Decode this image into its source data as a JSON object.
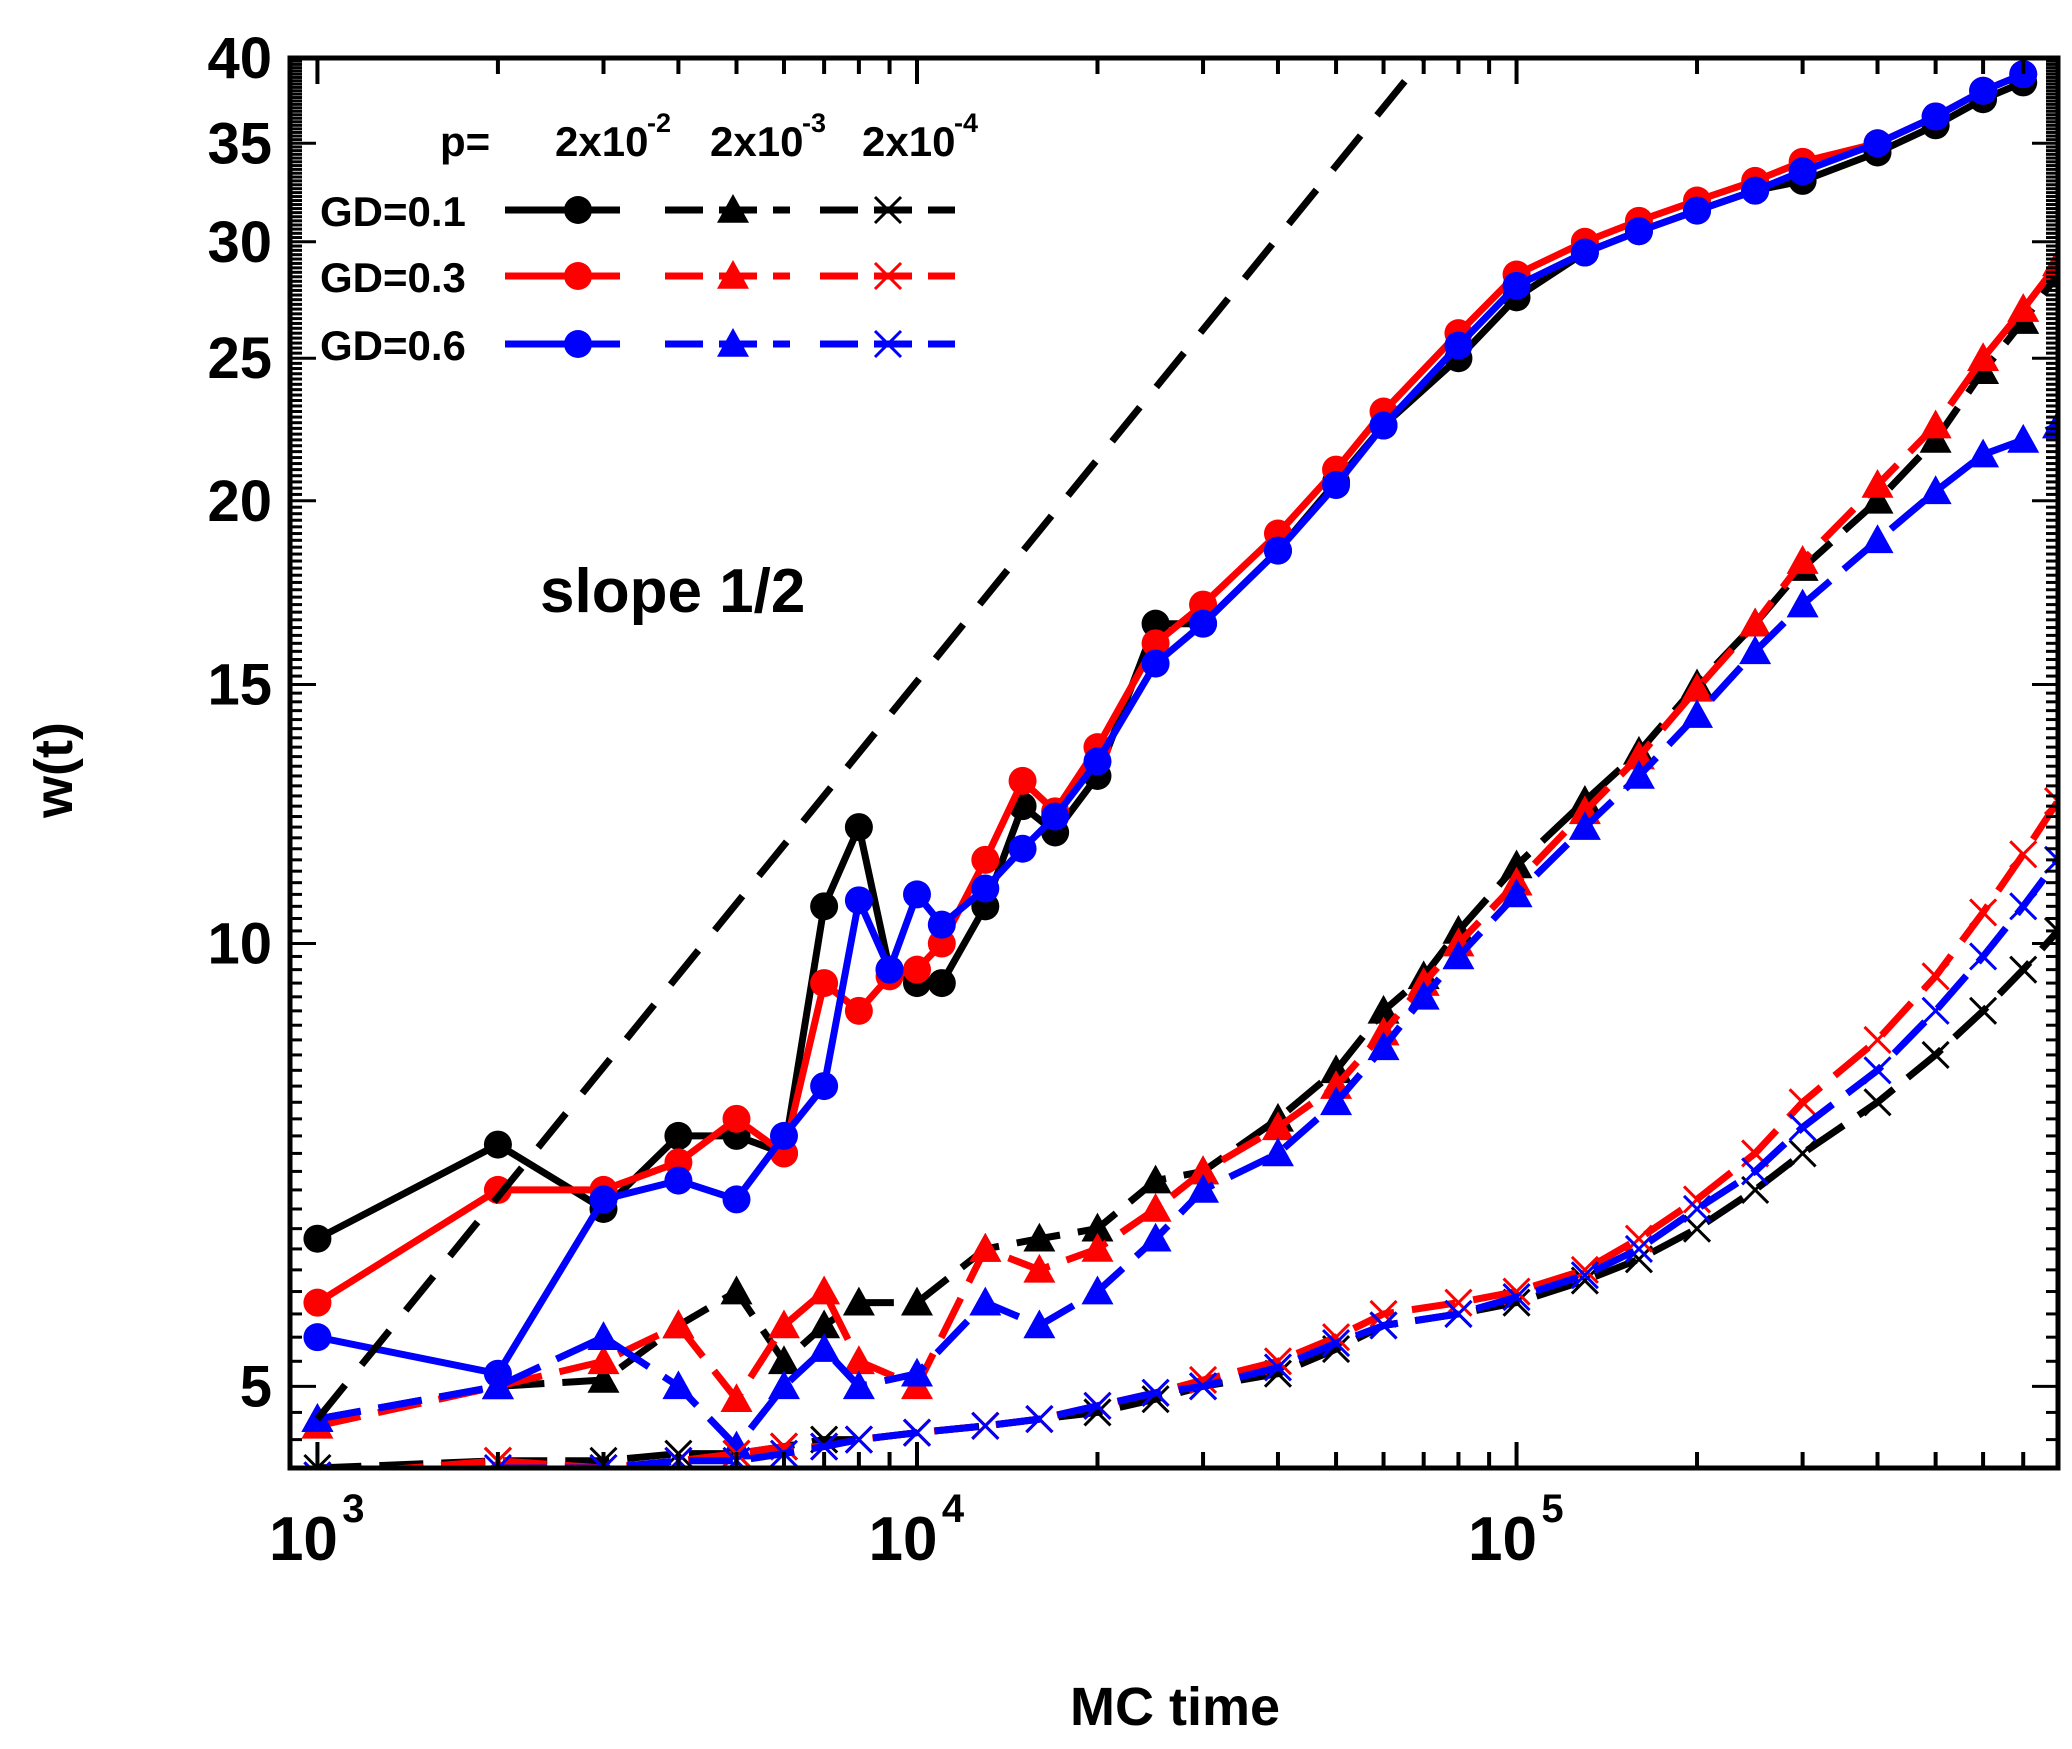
{
  "chart_data": {
    "type": "line",
    "xlabel": "MC time",
    "ylabel": "w(t)",
    "x_scale": "log",
    "y_scale": "log",
    "xlim": [
      900,
      800000
    ],
    "ylim": [
      4.4,
      40
    ],
    "x_ticks": [
      {
        "value": 1000,
        "base": "10",
        "exp": "3"
      },
      {
        "value": 10000,
        "base": "10",
        "exp": "4"
      },
      {
        "value": 100000,
        "base": "10",
        "exp": "5"
      }
    ],
    "y_ticks": [
      {
        "value": 5,
        "label": "5"
      },
      {
        "value": 10,
        "label": "10"
      },
      {
        "value": 15,
        "label": "15"
      },
      {
        "value": 20,
        "label": "20"
      },
      {
        "value": 25,
        "label": "25"
      },
      {
        "value": 30,
        "label": "30"
      },
      {
        "value": 35,
        "label": "35"
      },
      {
        "value": 40,
        "label": "40"
      }
    ],
    "legend": {
      "position": "top-left",
      "p_label": "p=",
      "p_values": [
        {
          "base": "2x10",
          "exp": "-2"
        },
        {
          "base": "2x10",
          "exp": "-3"
        },
        {
          "base": "2x10",
          "exp": "-4"
        }
      ],
      "rows": [
        {
          "label": "GD=0.1",
          "color": "#000000"
        },
        {
          "label": "GD=0.3",
          "color": "#ff0000"
        },
        {
          "label": "GD=0.6",
          "color": "#0000ff"
        }
      ]
    },
    "annotation": {
      "text": "slope 1/2",
      "slope": 0.5,
      "line_points": [
        [
          1000,
          4.75
        ],
        [
          70000,
          40
        ]
      ]
    },
    "series": [
      {
        "group": "p=2x10^-2",
        "marker": "circle",
        "color": "#000000",
        "dash": "solid",
        "x": [
          1000,
          2000,
          3000,
          4000,
          5000,
          6000,
          7000,
          8000,
          9000,
          10000,
          11000,
          13000,
          15000,
          17000,
          20000,
          25000,
          30000,
          40000,
          50000,
          60000,
          80000,
          100000,
          130000,
          160000,
          200000,
          250000,
          300000,
          400000,
          500000,
          600000,
          700000
        ],
        "y": [
          6.3,
          7.3,
          6.6,
          7.4,
          7.4,
          7.2,
          10.6,
          12.0,
          9.6,
          9.4,
          9.4,
          10.6,
          12.4,
          11.9,
          13.0,
          16.5,
          16.5,
          18.5,
          20.6,
          22.5,
          25.0,
          27.5,
          29.5,
          30.5,
          31.5,
          32.5,
          33.0,
          34.5,
          36.0,
          37.5,
          38.5
        ]
      },
      {
        "group": "p=2x10^-2",
        "marker": "circle",
        "color": "#ff0000",
        "dash": "solid",
        "x": [
          1000,
          2000,
          3000,
          4000,
          5000,
          6000,
          7000,
          8000,
          9000,
          10000,
          11000,
          13000,
          15000,
          17000,
          20000,
          25000,
          30000,
          40000,
          50000,
          60000,
          80000,
          100000,
          130000,
          160000,
          200000,
          250000,
          300000,
          400000,
          500000,
          600000,
          700000
        ],
        "y": [
          5.7,
          6.8,
          6.8,
          7.1,
          7.6,
          7.2,
          9.4,
          9.0,
          9.5,
          9.6,
          10.0,
          11.4,
          12.9,
          12.3,
          13.6,
          16.0,
          17.0,
          19.0,
          21.0,
          23.0,
          26.0,
          28.5,
          30.0,
          31.0,
          32.0,
          33.0,
          34.0,
          35.0,
          36.5,
          38.0,
          39.0
        ]
      },
      {
        "group": "p=2x10^-2",
        "marker": "circle",
        "color": "#0000ff",
        "dash": "solid",
        "x": [
          1000,
          2000,
          3000,
          4000,
          5000,
          6000,
          7000,
          8000,
          9000,
          10000,
          11000,
          13000,
          15000,
          17000,
          20000,
          25000,
          30000,
          40000,
          50000,
          60000,
          80000,
          100000,
          130000,
          160000,
          200000,
          250000,
          300000,
          400000,
          500000,
          600000,
          700000
        ],
        "y": [
          5.4,
          5.1,
          6.7,
          6.9,
          6.7,
          7.4,
          8.0,
          10.7,
          9.6,
          10.8,
          10.3,
          10.9,
          11.6,
          12.2,
          13.3,
          15.5,
          16.5,
          18.5,
          20.5,
          22.5,
          25.5,
          28.0,
          29.5,
          30.5,
          31.5,
          32.5,
          33.5,
          35.0,
          36.5,
          38.0,
          39.0
        ]
      },
      {
        "group": "p=2x10^-3",
        "marker": "triangle",
        "color": "#000000",
        "dash": "dashed",
        "x": [
          1000,
          2000,
          3000,
          4000,
          5000,
          6000,
          7000,
          8000,
          10000,
          13000,
          16000,
          20000,
          25000,
          30000,
          40000,
          50000,
          60000,
          70000,
          80000,
          100000,
          130000,
          160000,
          200000,
          250000,
          300000,
          400000,
          500000,
          600000,
          700000,
          800000
        ],
        "y": [
          4.75,
          5.0,
          5.05,
          5.5,
          5.8,
          5.2,
          5.5,
          5.7,
          5.7,
          6.2,
          6.3,
          6.4,
          6.9,
          7.0,
          7.6,
          8.2,
          9.0,
          9.5,
          10.2,
          11.3,
          12.5,
          13.5,
          15.0,
          16.5,
          18.0,
          20.0,
          22.0,
          24.5,
          26.5,
          28.5
        ]
      },
      {
        "group": "p=2x10^-3",
        "marker": "triangle",
        "color": "#ff0000",
        "dash": "dashed",
        "x": [
          1000,
          2000,
          3000,
          4000,
          5000,
          6000,
          7000,
          8000,
          10000,
          13000,
          16000,
          20000,
          25000,
          30000,
          40000,
          50000,
          60000,
          70000,
          80000,
          100000,
          130000,
          160000,
          200000,
          250000,
          300000,
          400000,
          500000,
          600000,
          700000,
          800000
        ],
        "y": [
          4.7,
          5.0,
          5.2,
          5.5,
          4.9,
          5.5,
          5.8,
          5.2,
          5.0,
          6.2,
          6.0,
          6.2,
          6.6,
          7.0,
          7.5,
          8.0,
          8.7,
          9.4,
          10.0,
          11.0,
          12.3,
          13.4,
          14.9,
          16.5,
          18.2,
          20.5,
          22.5,
          25.0,
          27.0,
          29.0
        ]
      },
      {
        "group": "p=2x10^-3",
        "marker": "triangle",
        "color": "#0000ff",
        "dash": "dashed",
        "x": [
          1000,
          2000,
          3000,
          4000,
          5000,
          6000,
          7000,
          8000,
          10000,
          13000,
          16000,
          20000,
          25000,
          30000,
          40000,
          50000,
          60000,
          70000,
          80000,
          100000,
          130000,
          160000,
          200000,
          250000,
          300000,
          400000,
          500000,
          600000,
          700000,
          800000
        ],
        "y": [
          4.75,
          5.0,
          5.4,
          5.0,
          4.55,
          5.0,
          5.3,
          5.0,
          5.1,
          5.7,
          5.5,
          5.8,
          6.3,
          6.8,
          7.2,
          7.8,
          8.5,
          9.2,
          9.8,
          10.8,
          12.0,
          13.0,
          14.3,
          15.8,
          17.0,
          18.8,
          20.3,
          21.5,
          22.0,
          22.5
        ]
      },
      {
        "group": "p=2x10^-4",
        "marker": "x",
        "color": "#000000",
        "dash": "dashed",
        "x": [
          1000,
          2000,
          3000,
          4000,
          5000,
          6000,
          7000,
          8000,
          10000,
          13000,
          16000,
          20000,
          25000,
          30000,
          40000,
          50000,
          60000,
          80000,
          100000,
          130000,
          160000,
          200000,
          250000,
          300000,
          400000,
          500000,
          600000,
          700000,
          800000
        ],
        "y": [
          4.4,
          4.45,
          4.45,
          4.5,
          4.5,
          4.55,
          4.6,
          4.6,
          4.65,
          4.7,
          4.75,
          4.8,
          4.9,
          5.0,
          5.1,
          5.3,
          5.5,
          5.6,
          5.7,
          5.9,
          6.1,
          6.4,
          6.8,
          7.2,
          7.8,
          8.4,
          9.0,
          9.6,
          10.2
        ]
      },
      {
        "group": "p=2x10^-4",
        "marker": "x",
        "color": "#ff0000",
        "dash": "dashed",
        "x": [
          1000,
          2000,
          3000,
          4000,
          5000,
          6000,
          7000,
          8000,
          10000,
          13000,
          16000,
          20000,
          25000,
          30000,
          40000,
          50000,
          60000,
          80000,
          100000,
          130000,
          160000,
          200000,
          250000,
          300000,
          400000,
          500000,
          600000,
          700000,
          800000
        ],
        "y": [
          4.35,
          4.45,
          4.4,
          4.45,
          4.5,
          4.55,
          4.55,
          4.6,
          4.65,
          4.7,
          4.75,
          4.85,
          4.95,
          5.05,
          5.2,
          5.4,
          5.6,
          5.7,
          5.8,
          6.0,
          6.3,
          6.7,
          7.2,
          7.8,
          8.6,
          9.5,
          10.5,
          11.5,
          12.5
        ]
      },
      {
        "group": "p=2x10^-4",
        "marker": "x",
        "color": "#0000ff",
        "dash": "dashed",
        "x": [
          1000,
          2000,
          3000,
          4000,
          5000,
          6000,
          7000,
          8000,
          10000,
          13000,
          16000,
          20000,
          25000,
          30000,
          40000,
          50000,
          60000,
          80000,
          100000,
          130000,
          160000,
          200000,
          250000,
          300000,
          400000,
          500000,
          600000,
          700000,
          800000
        ],
        "y": [
          4.35,
          4.4,
          4.4,
          4.45,
          4.45,
          4.5,
          4.55,
          4.6,
          4.65,
          4.7,
          4.75,
          4.85,
          4.95,
          5.0,
          5.15,
          5.35,
          5.5,
          5.6,
          5.75,
          5.95,
          6.2,
          6.6,
          7.0,
          7.5,
          8.2,
          9.0,
          9.8,
          10.6,
          11.4
        ]
      }
    ]
  }
}
